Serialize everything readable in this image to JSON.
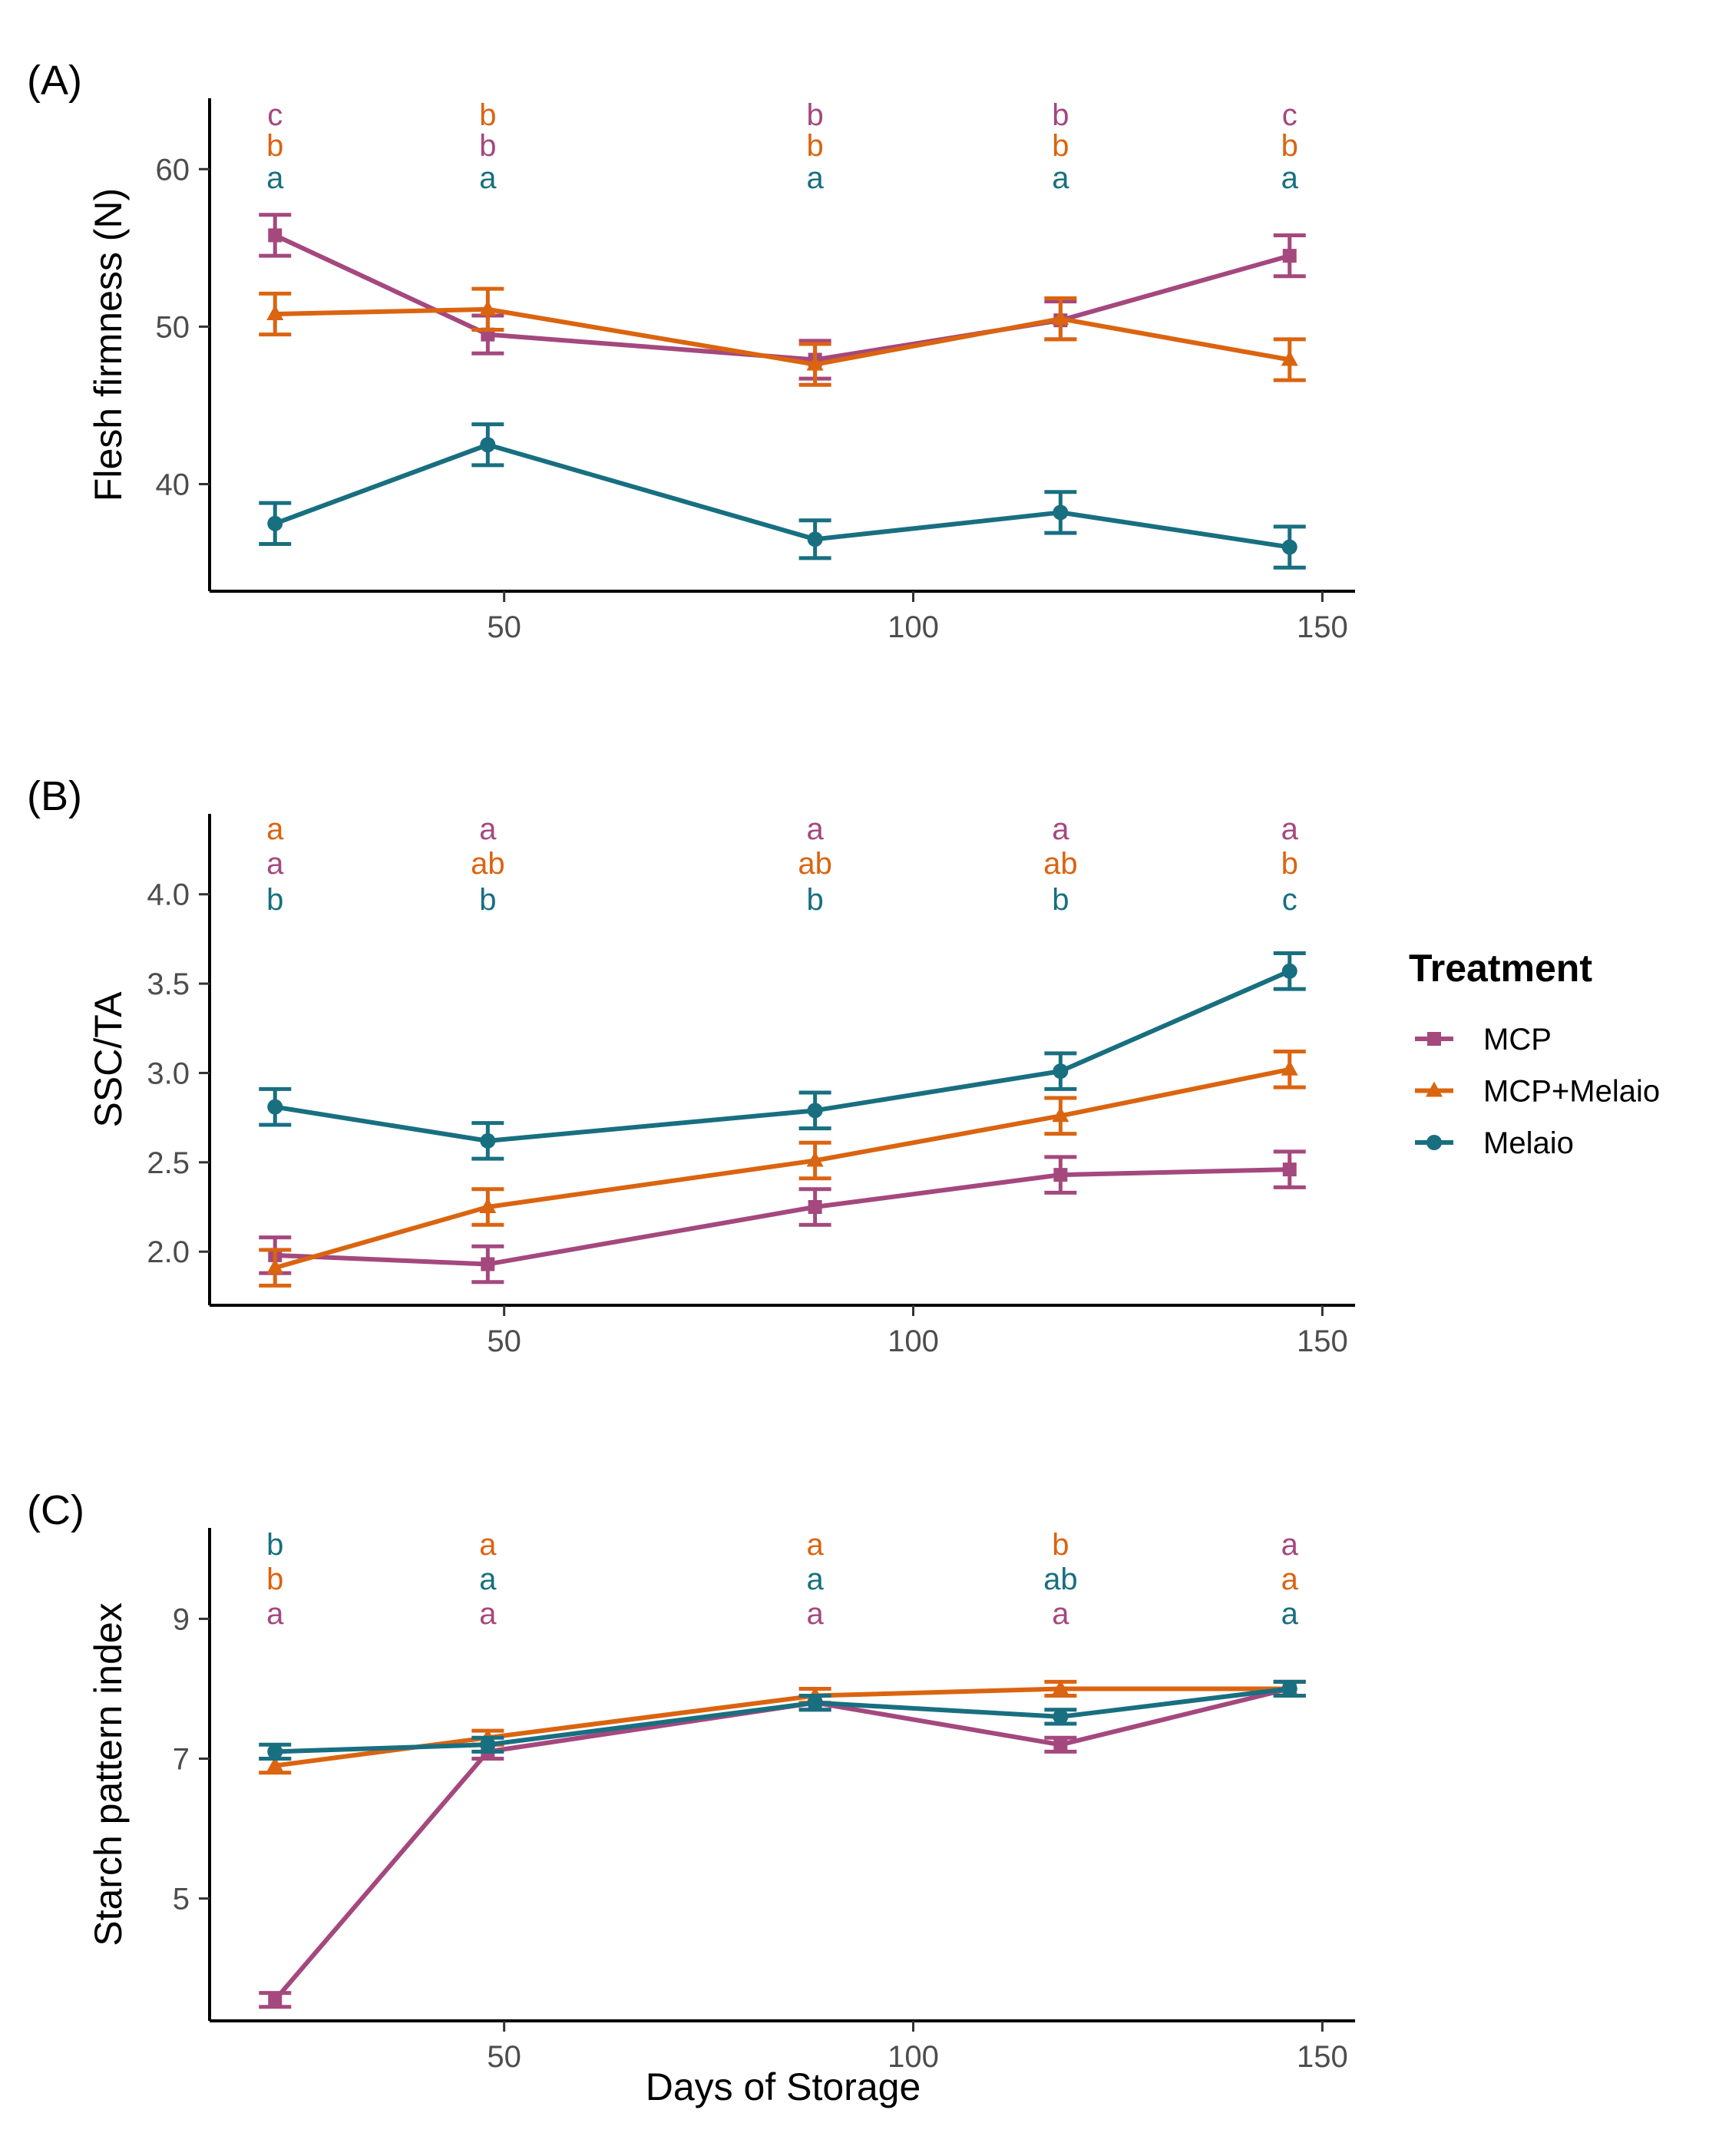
{
  "colors": {
    "MCP": "#A4487E",
    "MCP+Melaio": "#DB6410",
    "Melaio": "#186F80",
    "axis": "#000000",
    "tick_text": "#4D4D4D"
  },
  "legend": {
    "title": "Treatment",
    "items": [
      {
        "label": "MCP",
        "color": "#A4487E",
        "shape": "square"
      },
      {
        "label": "MCP+Melaio",
        "color": "#DB6410",
        "shape": "triangle"
      },
      {
        "label": "Melaio",
        "color": "#186F80",
        "shape": "circle"
      }
    ]
  },
  "x_axis_title": "Days of Storage",
  "chart_data": [
    {
      "panel_label": "(A)",
      "type": "line",
      "ylabel": "Flesh firmness (N)",
      "xlabel": "",
      "xlim": [
        14,
        154
      ],
      "ylim": [
        33.2,
        64.5
      ],
      "xticks": [
        50,
        100,
        150
      ],
      "yticks": [
        40,
        50,
        60
      ],
      "x": [
        22,
        48,
        88,
        118,
        146
      ],
      "series": [
        {
          "name": "MCP",
          "y": [
            55.8,
            49.5,
            47.9,
            50.4,
            54.5
          ],
          "err": [
            1.3,
            1.2,
            1.2,
            1.2,
            1.3
          ]
        },
        {
          "name": "MCP+Melaio",
          "y": [
            50.8,
            51.1,
            47.6,
            50.5,
            47.9
          ],
          "err": [
            1.3,
            1.3,
            1.3,
            1.3,
            1.3
          ]
        },
        {
          "name": "Melaio",
          "y": [
            37.5,
            42.5,
            36.5,
            38.2,
            36.0
          ],
          "err": [
            1.3,
            1.3,
            1.2,
            1.3,
            1.3
          ]
        }
      ],
      "letters": [
        {
          "row": [
            "c",
            "b",
            "a"
          ],
          "series": [
            "MCP",
            "MCP+Melaio",
            "Melaio"
          ]
        },
        {
          "row": [
            "b",
            "b",
            "a"
          ],
          "series": [
            "MCP+Melaio",
            "MCP",
            "Melaio"
          ]
        },
        {
          "row": [
            "b",
            "b",
            "a"
          ],
          "series": [
            "MCP",
            "MCP+Melaio",
            "Melaio"
          ]
        },
        {
          "row": [
            "b",
            "b",
            "a"
          ],
          "series": [
            "MCP",
            "MCP+Melaio",
            "Melaio"
          ]
        },
        {
          "row": [
            "c",
            "b",
            "a"
          ],
          "series": [
            "MCP",
            "MCP+Melaio",
            "Melaio"
          ]
        }
      ]
    },
    {
      "panel_label": "(B)",
      "type": "line",
      "ylabel": "SSC/TA",
      "xlabel": "",
      "xlim": [
        14,
        154
      ],
      "ylim": [
        1.7,
        4.45
      ],
      "xticks": [
        50,
        100,
        150
      ],
      "yticks": [
        2.0,
        2.5,
        3.0,
        3.5,
        4.0
      ],
      "x": [
        22,
        48,
        88,
        118,
        146
      ],
      "series": [
        {
          "name": "MCP",
          "y": [
            1.98,
            1.93,
            2.25,
            2.43,
            2.46
          ],
          "err": [
            0.1,
            0.1,
            0.1,
            0.1,
            0.1
          ]
        },
        {
          "name": "MCP+Melaio",
          "y": [
            1.91,
            2.25,
            2.51,
            2.76,
            3.02
          ],
          "err": [
            0.1,
            0.1,
            0.1,
            0.1,
            0.1
          ]
        },
        {
          "name": "Melaio",
          "y": [
            2.81,
            2.62,
            2.79,
            3.01,
            3.57
          ],
          "err": [
            0.1,
            0.1,
            0.1,
            0.1,
            0.1
          ]
        }
      ],
      "letters": [
        {
          "row": [
            "a",
            "a",
            "b"
          ],
          "series": [
            "MCP+Melaio",
            "MCP",
            "Melaio"
          ]
        },
        {
          "row": [
            "a",
            "ab",
            "b"
          ],
          "series": [
            "MCP",
            "MCP+Melaio",
            "Melaio"
          ]
        },
        {
          "row": [
            "a",
            "ab",
            "b"
          ],
          "series": [
            "MCP",
            "MCP+Melaio",
            "Melaio"
          ]
        },
        {
          "row": [
            "a",
            "ab",
            "b"
          ],
          "series": [
            "MCP",
            "MCP+Melaio",
            "Melaio"
          ]
        },
        {
          "row": [
            "a",
            "b",
            "c"
          ],
          "series": [
            "MCP",
            "MCP+Melaio",
            "Melaio"
          ]
        }
      ]
    },
    {
      "panel_label": "(C)",
      "type": "line",
      "ylabel": "Starch pattern index",
      "xlabel": "Days of Storage",
      "xlim": [
        14,
        154
      ],
      "ylim": [
        3.25,
        10.3
      ],
      "xticks": [
        50,
        100,
        150
      ],
      "yticks": [
        5,
        7,
        9
      ],
      "x": [
        22,
        48,
        88,
        118,
        146
      ],
      "series": [
        {
          "name": "MCP",
          "y": [
            3.55,
            7.1,
            7.8,
            7.2,
            8.0
          ],
          "err": [
            0.1,
            0.1,
            0.1,
            0.1,
            0.1
          ]
        },
        {
          "name": "MCP+Melaio",
          "y": [
            6.9,
            7.3,
            7.9,
            8.0,
            8.0
          ],
          "err": [
            0.1,
            0.1,
            0.1,
            0.1,
            0.1
          ]
        },
        {
          "name": "Melaio",
          "y": [
            7.1,
            7.2,
            7.8,
            7.6,
            8.0
          ],
          "err": [
            0.1,
            0.1,
            0.1,
            0.1,
            0.1
          ]
        }
      ],
      "letters": [
        {
          "row": [
            "b",
            "b",
            "a"
          ],
          "series": [
            "Melaio",
            "MCP+Melaio",
            "MCP"
          ]
        },
        {
          "row": [
            "a",
            "a",
            "a"
          ],
          "series": [
            "MCP+Melaio",
            "Melaio",
            "MCP"
          ]
        },
        {
          "row": [
            "a",
            "a",
            "a"
          ],
          "series": [
            "MCP+Melaio",
            "Melaio",
            "MCP"
          ]
        },
        {
          "row": [
            "b",
            "ab",
            "a"
          ],
          "series": [
            "MCP+Melaio",
            "Melaio",
            "MCP"
          ]
        },
        {
          "row": [
            "a",
            "a",
            "a"
          ],
          "series": [
            "MCP",
            "MCP+Melaio",
            "Melaio"
          ]
        }
      ]
    }
  ]
}
